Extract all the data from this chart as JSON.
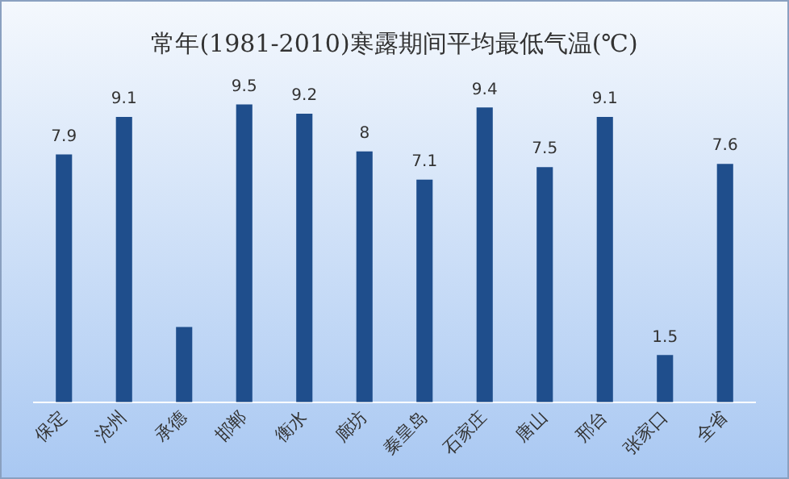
{
  "chart_data": {
    "type": "bar",
    "title": "常年(1981-2010)寒露期间平均最低气温(℃)",
    "categories": [
      "保定",
      "沧州",
      "承德",
      "邯郸",
      "衡水",
      "廊坊",
      "秦皇岛",
      "石家庄",
      "唐山",
      "邢台",
      "张家口",
      "全省"
    ],
    "values": [
      7.9,
      9.1,
      2.4,
      9.5,
      9.2,
      8,
      7.1,
      9.4,
      7.5,
      9.1,
      1.5,
      7.6
    ],
    "value_labels": [
      "7.9",
      "9.1",
      null,
      "9.5",
      "9.2",
      "8",
      "7.1",
      "9.4",
      "7.5",
      "9.1",
      "1.5",
      "7.6"
    ],
    "color": "#1f4e8c",
    "grid": false,
    "legend": false
  }
}
